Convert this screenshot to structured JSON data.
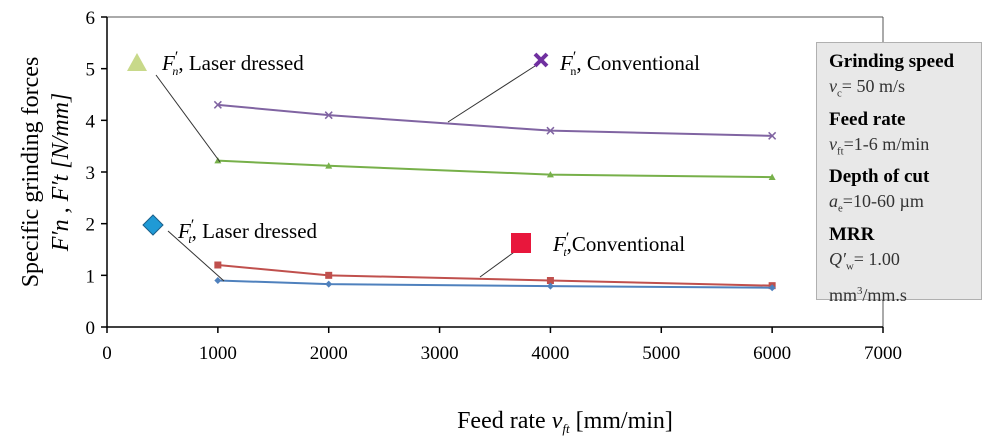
{
  "chart_data": {
    "type": "line",
    "x": [
      1000,
      2000,
      4000,
      6000
    ],
    "xlim": [
      0,
      7000
    ],
    "ylim": [
      0,
      6
    ],
    "x_ticks": [
      0,
      1000,
      2000,
      3000,
      4000,
      5000,
      6000,
      7000
    ],
    "y_ticks": [
      0,
      1,
      2,
      3,
      4,
      5,
      6
    ],
    "xlabel": "Feed rate v",
    "xlabel_sub": "ft",
    "xlabel_unit": "[mm/min]",
    "ylabel_line1": "Specific grinding forces",
    "ylabel_line2": "F′n , F′t [N/mm]",
    "series": [
      {
        "key": "fn_conv",
        "name": "F′n, Conventional",
        "color": "#8064a2",
        "marker": "x",
        "values": [
          4.3,
          4.1,
          3.8,
          3.7
        ]
      },
      {
        "key": "fn_laser",
        "name": "F′n, Laser dressed",
        "color": "#77b04a",
        "marker": "triangle",
        "values": [
          3.22,
          3.12,
          2.95,
          2.9
        ]
      },
      {
        "key": "ft_conv",
        "name": "F′t, Conventional",
        "color": "#c0504d",
        "marker": "square",
        "values": [
          1.2,
          1.0,
          0.9,
          0.8
        ]
      },
      {
        "key": "ft_laser",
        "name": "F′t, Laser dressed",
        "color": "#4f81bd",
        "marker": "diamond",
        "values": [
          0.9,
          0.83,
          0.79,
          0.76
        ]
      }
    ],
    "legend_marker_colors": {
      "fn_laser": "#c8d98a",
      "fn_conv": "#7030a0",
      "ft_laser": "#1f9ad6",
      "ft_conv": "#e8173c"
    },
    "callouts": {
      "fn_laser": {
        "text": ", Laser dressed"
      },
      "fn_conv": {
        "text": ", Conventional"
      },
      "ft_laser": {
        "text": ", Laser dressed"
      },
      "ft_conv": {
        "text": ",Conventional"
      }
    },
    "grid": false
  },
  "info_box": {
    "speed_title": "Grinding speed",
    "speed_var": "v",
    "speed_sub": "c",
    "speed_val": "= 50 m/s",
    "feed_title": "Feed rate",
    "feed_var": "v",
    "feed_sub": "ft",
    "feed_val": "=1-6 m/min",
    "depth_title": "Depth of cut",
    "depth_var": "a",
    "depth_sub": "e",
    "depth_val": "=10-60 µm",
    "mrr_title": "MRR",
    "mrr_var": "Q′",
    "mrr_sub": "w",
    "mrr_val": "= 1.00",
    "mrr_unit_a": "mm",
    "mrr_unit_sup": "3",
    "mrr_unit_b": "/mm.s"
  }
}
